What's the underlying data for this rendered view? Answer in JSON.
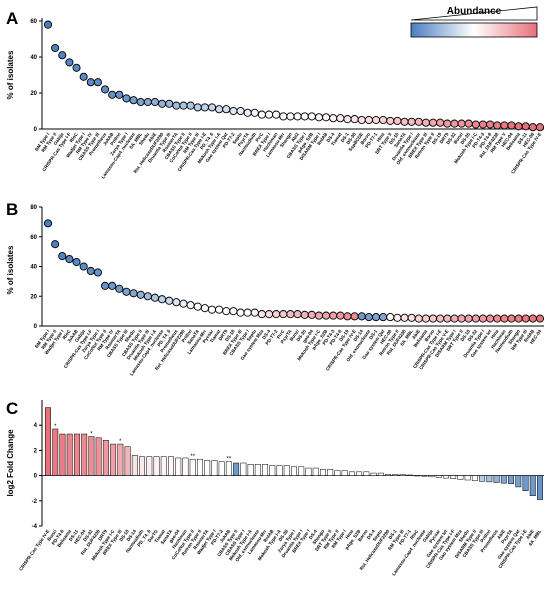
{
  "legend": {
    "title": "Abundance",
    "colors": {
      "low": "#4a7fc1",
      "mid": "#ffffff",
      "high": "#e8707a"
    }
  },
  "chart_data": [
    {
      "panel": "A",
      "type": "scatter",
      "ylabel": "% of isolates",
      "xlabel": "",
      "ylim": [
        0,
        60
      ],
      "yticks": [
        0,
        20,
        40,
        60
      ],
      "grid": false,
      "categories": [
        "RM Type I",
        "RM Type II",
        "Gabija",
        "CRISPR-Cas Type I-F",
        "RloC",
        "Wadjet Type I",
        "RM Type IV",
        "CBASS Type III",
        "Prometheus",
        "JukAB",
        "Prithvi",
        "Zorya Type I",
        "Lamassu-Cap4_nuclease",
        "6A_MBL",
        "Shedu",
        "AbiE",
        "Rst_HelicaseDUF2290",
        "Druantia Type III",
        "RosmerTA",
        "CBASS Type II",
        "CoCoNut Type II",
        "RM Type III",
        "CRISPR-Cas Type I-E",
        "PD_T4_6",
        "Mokosh Type I-A",
        "Gao system Qat",
        "PD-T7-2",
        "Septu",
        "PsyrTA",
        "Nantoudiuth",
        "PrrC",
        "BREX Type I",
        "Hachiman",
        "Lamassu-Mrr",
        "Shango",
        "Abi2",
        "CBASS Type I",
        "pAgo_S2B",
        "DISARM Type I",
        "RnlAB",
        "DS-4",
        "Tiamat",
        "DS-1",
        "DS-38",
        "SspBCDE",
        "Borvo",
        "PD-T7-1",
        "Hma",
        "DRT Type II",
        "DS-10",
        "SanaTA",
        "Druantia Type I",
        "Old_exonuclease",
        "BREX Type III",
        "Retron Type II",
        "DS-19",
        "DRT9",
        "DS-32",
        "Bunzi",
        "DS-35",
        "Mokosh Type I-C",
        "PD-T4-3",
        "PD-T4-8",
        "Rst_DUF4238",
        "RM Type V",
        "HEC-04",
        "Belisama",
        "DS-11",
        "HEC-08",
        "CRISPR-Cas Type IV-E"
      ],
      "values": [
        58,
        45,
        41,
        37,
        34,
        29,
        26,
        26,
        22,
        19,
        19,
        17,
        16,
        15,
        15,
        15,
        14,
        14,
        13,
        13,
        13,
        12,
        12,
        12,
        11,
        11,
        10,
        10,
        9,
        9,
        8,
        8,
        8,
        7,
        7,
        7,
        7,
        7,
        6.5,
        6.5,
        6,
        6,
        5.5,
        5.5,
        5,
        5,
        5,
        5,
        4.5,
        4.5,
        4,
        4,
        4,
        3.5,
        3.5,
        3.5,
        3,
        3,
        3,
        3,
        2.5,
        2.5,
        2.5,
        2,
        2,
        2,
        1.5,
        1.5,
        1,
        1
      ],
      "abundance": [
        0.0,
        0.0,
        0.02,
        0.02,
        0.04,
        0.04,
        0.05,
        0.05,
        0.06,
        0.07,
        0.08,
        0.1,
        0.12,
        0.14,
        0.16,
        0.18,
        0.2,
        0.22,
        0.24,
        0.26,
        0.28,
        0.3,
        0.32,
        0.34,
        0.36,
        0.38,
        0.4,
        0.42,
        0.44,
        0.46,
        0.48,
        0.49,
        0.5,
        0.5,
        0.5,
        0.5,
        0.52,
        0.52,
        0.53,
        0.54,
        0.55,
        0.56,
        0.57,
        0.58,
        0.6,
        0.62,
        0.64,
        0.66,
        0.68,
        0.7,
        0.72,
        0.74,
        0.76,
        0.78,
        0.8,
        0.82,
        0.84,
        0.86,
        0.88,
        0.9,
        0.92,
        0.94,
        0.95,
        0.96,
        0.97,
        0.98,
        0.99,
        1.0,
        1.0,
        1.0
      ]
    },
    {
      "panel": "B",
      "type": "scatter",
      "ylabel": "% of isolates",
      "xlabel": "",
      "ylim": [
        0,
        80
      ],
      "yticks": [
        0,
        20,
        40,
        60,
        80
      ],
      "grid": false,
      "categories": [
        "RM Type I",
        "RM Type II",
        "Wadjet Type I",
        "RloC",
        "JukAB",
        "Gabija",
        "CRISPR-Cas Type I-F",
        "Zorya Type I",
        "CoCoNut Type II",
        "RM Type IV",
        "RosmerTA",
        "CBASS Type III",
        "Shedu",
        "CBASS Type II",
        "Druantia Type III",
        "Mokosh Type I-A",
        "Lamassu-Cap4_nuclease",
        "PD_T4_6",
        "Prometheus",
        "Rst_HelicaseDUF2290",
        "Prithvi",
        "SanaTA",
        "Lamassu-Mrr",
        "Pycsar",
        "Tiamat",
        "DRT9",
        "DS-18",
        "BREX Type III",
        "CBASS Type I",
        "Septu",
        "Gao system Mza",
        "DS-4",
        "PD-T7-2",
        "PrrC",
        "PsyrTA",
        "Bunzi",
        "DS-35",
        "gao-04",
        "Mokosh Type I-C",
        "pAgo_S2B",
        "PD-T4-3",
        "PD-T4-8",
        "DS-19",
        "CRISPR-Cas Type IV-E",
        "DS-14",
        "Old_exonuclease",
        "DS-1",
        "Gao system Qat",
        "HEC-08",
        "Retron Type II",
        "Rst_DUF4238",
        "6A_MBL",
        "AbiE",
        "Belisama",
        "Borvo",
        "CRISPR-Cas Type I-E",
        "CRISPR-Cas Type V-E",
        "DISARM Type I",
        "DRT Type II",
        "DS-10",
        "DS-32",
        "Druantia Type I",
        "Gao system Iet",
        "Hma",
        "Hachiman",
        "Nantoudiuth",
        "Shango",
        "RM Type III",
        "RnlAB",
        "HEC-04"
      ],
      "values": [
        69,
        55,
        47,
        45,
        43,
        40,
        37,
        36,
        27,
        27,
        25,
        23,
        22,
        21,
        20,
        19,
        18,
        17,
        16,
        15,
        14,
        13,
        12,
        11,
        11,
        10,
        10,
        9,
        9,
        9,
        8,
        8,
        8,
        8,
        8,
        8,
        7.5,
        7.5,
        7,
        7,
        7,
        7,
        6.5,
        6.5,
        6.5,
        6,
        6,
        6,
        6,
        5.5,
        5.5,
        5.5,
        5,
        5,
        5,
        5,
        5,
        5,
        5,
        5,
        5,
        5,
        5,
        5,
        5,
        5,
        5,
        5,
        5,
        5
      ],
      "abundance": [
        0.0,
        0.0,
        0.02,
        0.03,
        0.04,
        0.05,
        0.06,
        0.08,
        0.08,
        0.1,
        0.12,
        0.14,
        0.16,
        0.2,
        0.24,
        0.28,
        0.32,
        0.36,
        0.4,
        0.44,
        0.46,
        0.48,
        0.5,
        0.5,
        0.5,
        0.5,
        0.52,
        0.5,
        0.5,
        0.55,
        0.58,
        0.62,
        0.66,
        0.7,
        0.72,
        0.74,
        0.76,
        0.78,
        0.8,
        0.82,
        0.84,
        0.86,
        0.88,
        0.9,
        0.1,
        0.12,
        0.14,
        0.16,
        0.5,
        0.55,
        0.6,
        0.62,
        0.65,
        0.68,
        0.7,
        0.72,
        0.75,
        0.78,
        0.8,
        0.82,
        0.84,
        0.86,
        0.88,
        0.9,
        0.92,
        0.94,
        0.95,
        0.96,
        0.98,
        1.0
      ]
    },
    {
      "panel": "C",
      "type": "bar",
      "ylabel": "log2 Fold Change",
      "xlabel": "",
      "ylim": [
        -4,
        6
      ],
      "yticks": [
        -4,
        -2,
        0,
        2,
        4
      ],
      "grid": false,
      "categories": [
        "CRISPR-Cas Type IV-E",
        "Bunzi",
        "PD-T4-8",
        "Belisama",
        "DS-11",
        "HEC-04",
        "DS-32",
        "Rst_DUF4238",
        "DRT9",
        "Mokosh Type I-C",
        "BREX Type III",
        "DS-10",
        "DS-14",
        "Nantoudiuth",
        "PD_T4_6",
        "DarTG",
        "Tiamat",
        "SanaTA",
        "gao-04",
        "Hachiman",
        "CoCoNut Type II",
        "Retron Type II",
        "RosmerTA",
        "Wadjet Type I",
        "PD-T7-2",
        "JukAB",
        "CBASS Type II",
        "CBASS Type I",
        "Mokosh Type I-A",
        "Old_exonuclease",
        "Lamassu-Mrr",
        "RnlAB",
        "Mokosh Type I-A",
        "DS-38",
        "Zorya Type I",
        "Druantia Type I",
        "BREX Type I",
        "DS-4",
        "Shango",
        "DRT Type II",
        "RM Type II",
        "RM Type I",
        "Hma",
        "pAgo_S2B",
        "Borvo",
        "DS-4",
        "Septu",
        "Rst_HelicaseDUF2290",
        "DS-1",
        "RM Type III",
        "PD-T7-1",
        "RloC",
        "Lamassu-Cap4_nuclease",
        "Gabija",
        "Pycsar",
        "Gao system Iet",
        "CRISPR-Cas Type I-F",
        "Gao system Mza",
        "Shedu",
        "DISARM Type II",
        "CBASS Type III",
        "Prithvi",
        "Prometheus",
        "AbiE",
        "PsyrTA",
        "Gao system Qat",
        "CRISPR-Cas Type I-E",
        "AbiE",
        "6A_MBL"
      ],
      "values": [
        5.4,
        3.7,
        3.3,
        3.3,
        3.3,
        3.3,
        3.1,
        3.0,
        2.8,
        2.5,
        2.5,
        2.3,
        1.6,
        1.5,
        1.5,
        1.5,
        1.5,
        1.5,
        1.4,
        1.4,
        1.3,
        1.3,
        1.2,
        1.2,
        1.1,
        1.1,
        1.0,
        1.0,
        0.9,
        0.9,
        0.9,
        0.8,
        0.8,
        0.8,
        0.7,
        0.7,
        0.6,
        0.6,
        0.5,
        0.5,
        0.4,
        0.4,
        0.3,
        0.3,
        0.3,
        0.2,
        0.2,
        0.1,
        0.1,
        0.1,
        0.05,
        0.0,
        -0.05,
        -0.1,
        -0.15,
        -0.2,
        -0.25,
        -0.3,
        -0.35,
        -0.4,
        -0.45,
        -0.5,
        -0.55,
        -0.6,
        -0.65,
        -0.9,
        -1.2,
        -1.6,
        -1.9
      ],
      "abundance": [
        1.0,
        0.97,
        0.95,
        0.93,
        0.92,
        0.91,
        0.9,
        0.88,
        0.86,
        0.84,
        0.8,
        0.76,
        0.6,
        0.58,
        0.56,
        0.55,
        0.54,
        0.53,
        0.52,
        0.52,
        0.51,
        0.51,
        0.5,
        0.5,
        0.5,
        0.5,
        0.1,
        0.5,
        0.5,
        0.5,
        0.5,
        0.5,
        0.5,
        0.5,
        0.5,
        0.5,
        0.5,
        0.5,
        0.5,
        0.5,
        0.5,
        0.5,
        0.5,
        0.5,
        0.5,
        0.5,
        0.5,
        0.5,
        0.5,
        0.5,
        0.5,
        0.5,
        0.5,
        0.5,
        0.5,
        0.5,
        0.5,
        0.5,
        0.5,
        0.5,
        0.3,
        0.25,
        0.2,
        0.15,
        0.12,
        0.12,
        0.1,
        0.1,
        0.08
      ],
      "annotations": [
        {
          "index": 1,
          "text": "*"
        },
        {
          "index": 6,
          "text": "*"
        },
        {
          "index": 10,
          "text": "*"
        },
        {
          "index": 20,
          "text": "**"
        },
        {
          "index": 25,
          "text": "**"
        }
      ]
    }
  ]
}
